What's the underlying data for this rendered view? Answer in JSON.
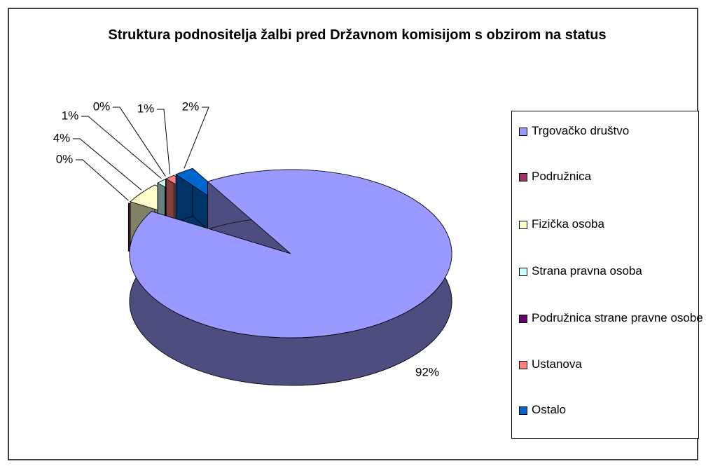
{
  "chart_data": {
    "type": "pie",
    "title": "Struktura podnositelja žalbi pred Državnom komisijom s obzirom na status",
    "categories": [
      "Trgovačko društvo",
      "Podružnica",
      "Fizička osoba",
      "Strana pravna osoba",
      "Podružnica strane pravne osobe",
      "Ustanova",
      "Ostalo"
    ],
    "values": [
      92,
      0,
      4,
      1,
      0,
      1,
      2
    ],
    "value_labels": [
      "92%",
      "0%",
      "4%",
      "1%",
      "0%",
      "1%",
      "2%"
    ],
    "colors": [
      "#9999ff",
      "#993366",
      "#ffffcc",
      "#ccffff",
      "#660066",
      "#ff8080",
      "#0066cc"
    ],
    "legend": "right"
  }
}
